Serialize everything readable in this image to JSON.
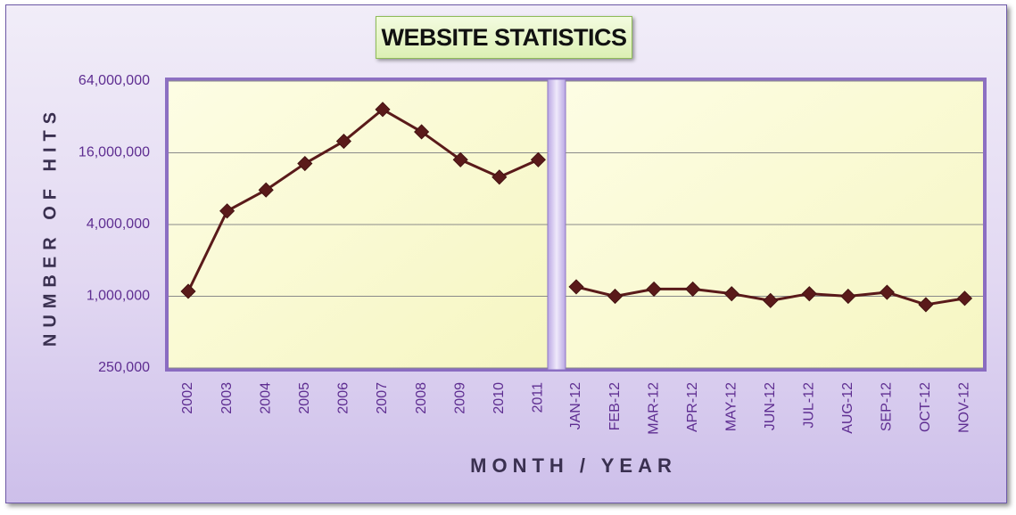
{
  "chart_data": {
    "type": "line",
    "title": "WEBSITE STATISTICS",
    "xlabel": "MONTH / YEAR",
    "ylabel": "NUMBER OF HITS",
    "y_scale": "log",
    "ylim": [
      250000,
      64000000
    ],
    "y_ticks": [
      250000,
      1000000,
      4000000,
      16000000,
      64000000
    ],
    "y_tick_labels": [
      "250,000",
      "1,000,000",
      "4,000,000",
      "16,000,000",
      "64,000,000"
    ],
    "grid": true,
    "legend": "none",
    "panels": [
      {
        "name": "",
        "categories": [
          "2002",
          "2003",
          "2004",
          "2005",
          "2006",
          "2007",
          "2008",
          "2009",
          "2010",
          "2011"
        ],
        "values": [
          1100000,
          5200000,
          7800000,
          13000000,
          20000000,
          37000000,
          24000000,
          14000000,
          10000000,
          14000000
        ]
      },
      {
        "name": "",
        "categories": [
          "JAN-12",
          "FEB-12",
          "MAR-12",
          "APR-12",
          "MAY-12",
          "JUN-12",
          "JUL-12",
          "AUG-12",
          "SEP-12",
          "OCT-12",
          "NOV-12"
        ],
        "values": [
          1200000,
          1000000,
          1150000,
          1150000,
          1050000,
          920000,
          1050000,
          1000000,
          1080000,
          850000,
          960000
        ]
      }
    ],
    "colors": {
      "line": "#5a1a1a",
      "marker": "#5a1a1a",
      "plot_bg": "#fbfbd2",
      "axis_text": "#5e2d91",
      "axis_title": "#3a3050"
    }
  }
}
